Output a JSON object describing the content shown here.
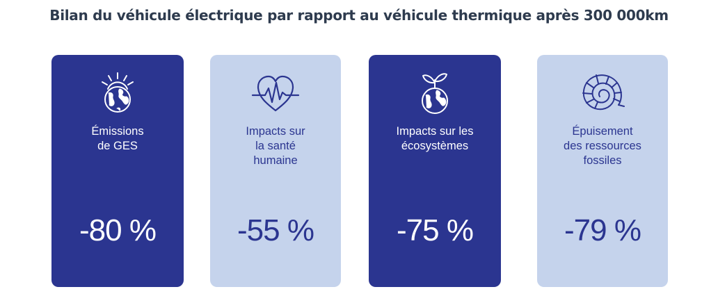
{
  "title": "Bilan du véhicule électrique par rapport au véhicule thermique après 300 000km",
  "colors": {
    "dark": "#2b3590",
    "light": "#c5d3ec",
    "title": "#2e3b4e"
  },
  "cards": [
    {
      "icon": "earth-sun-icon",
      "label": "Émissions\nde GES",
      "value": "-80 %",
      "style": "dark"
    },
    {
      "icon": "heartbeat-icon",
      "label": "Impacts sur\nla santé\nhumaine",
      "value": "-55 %",
      "style": "light"
    },
    {
      "icon": "earth-sprout-icon",
      "label": "Impacts sur les\nécosystèmes",
      "value": "-75 %",
      "style": "dark"
    },
    {
      "icon": "ammonite-fossil-icon",
      "label": "Épuisement\ndes ressources\nfossiles",
      "value": "-79 %",
      "style": "light"
    }
  ]
}
